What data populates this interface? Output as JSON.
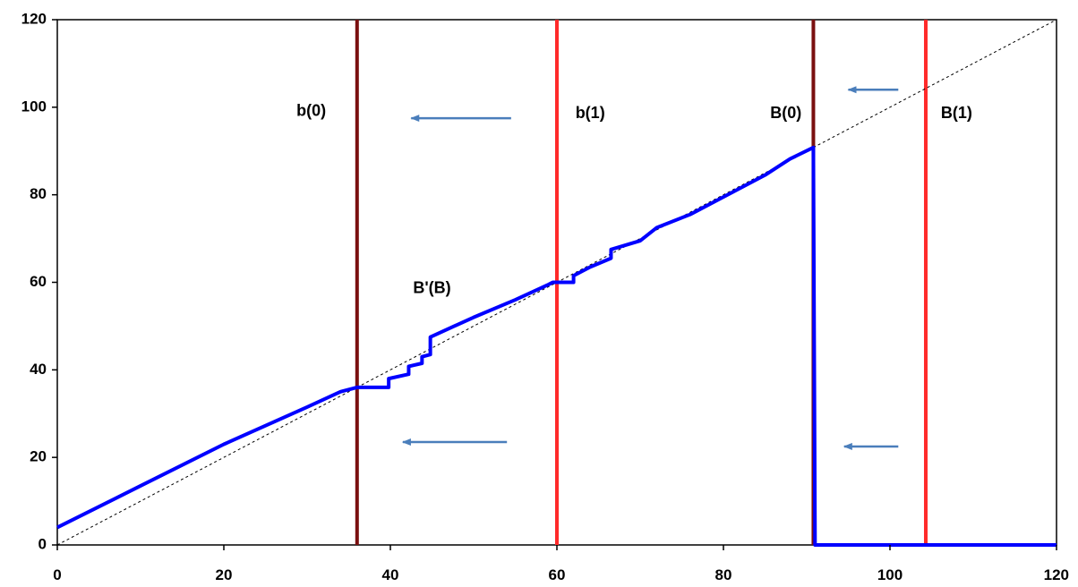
{
  "chart_data": {
    "type": "line",
    "xlim": [
      0,
      120
    ],
    "ylim": [
      0,
      120
    ],
    "x_ticks": [
      0,
      20,
      40,
      60,
      80,
      100,
      120
    ],
    "y_ticks": [
      0,
      20,
      40,
      60,
      80,
      100,
      120
    ],
    "grid": false,
    "legend": "none",
    "title": "",
    "xlabel": "",
    "ylabel": "",
    "colors": {
      "curve": "#0000ff",
      "diagonal": "#000000",
      "dark_vline": "#7a1010",
      "red_vline": "#ff2a2a",
      "arrow": "#4a7ebb"
    },
    "series": [
      {
        "role": "curve",
        "label": "B'(B)",
        "points": [
          [
            0,
            4
          ],
          [
            10,
            13.5
          ],
          [
            20,
            23
          ],
          [
            30,
            31.5
          ],
          [
            34,
            35
          ],
          [
            36,
            36
          ],
          [
            39.8,
            36
          ],
          [
            39.8,
            38
          ],
          [
            42.2,
            39
          ],
          [
            42.2,
            40.8
          ],
          [
            43.8,
            41.5
          ],
          [
            43.8,
            43
          ],
          [
            44.8,
            43.5
          ],
          [
            44.8,
            47.5
          ],
          [
            50,
            52
          ],
          [
            55,
            56
          ],
          [
            59,
            59.5
          ],
          [
            59.5,
            60
          ],
          [
            62,
            60
          ],
          [
            62,
            61.5
          ],
          [
            64,
            63.5
          ],
          [
            66.5,
            65.5
          ],
          [
            66.5,
            67.5
          ],
          [
            70,
            69.5
          ],
          [
            72,
            72.5
          ],
          [
            76,
            75.5
          ],
          [
            80,
            79.5
          ],
          [
            85,
            84.5
          ],
          [
            88,
            88.2
          ],
          [
            90.8,
            90.8
          ],
          [
            91,
            0
          ],
          [
            120,
            0
          ]
        ]
      },
      {
        "role": "diagonal",
        "points": [
          [
            0,
            0
          ],
          [
            120,
            120
          ]
        ]
      }
    ],
    "vertical_lines": [
      {
        "x": 36,
        "label": "b(0)",
        "color": "#7a1010"
      },
      {
        "x": 60,
        "label": "b(1)",
        "color": "#ff2a2a"
      },
      {
        "x": 90.8,
        "label": "B(0)",
        "color": "#7a1010"
      },
      {
        "x": 104.3,
        "label": "B(1)",
        "color": "#ff2a2a"
      }
    ],
    "arrows": [
      {
        "from": [
          54.5,
          97.5
        ],
        "to": [
          42.5,
          97.5
        ]
      },
      {
        "from": [
          54,
          23.5
        ],
        "to": [
          41.5,
          23.5
        ]
      },
      {
        "from": [
          101,
          104
        ],
        "to": [
          95,
          104
        ]
      },
      {
        "from": [
          101,
          22.5
        ],
        "to": [
          94.5,
          22.5
        ]
      }
    ],
    "annotations": [
      {
        "text": "b(0)",
        "x": 30.5,
        "y": 99
      },
      {
        "text": "b(1)",
        "x": 64,
        "y": 98.5
      },
      {
        "text": "B(0)",
        "x": 87.5,
        "y": 98.5
      },
      {
        "text": "B(1)",
        "x": 108,
        "y": 98.5
      },
      {
        "text": "B'(B)",
        "x": 45,
        "y": 58.5
      }
    ]
  }
}
